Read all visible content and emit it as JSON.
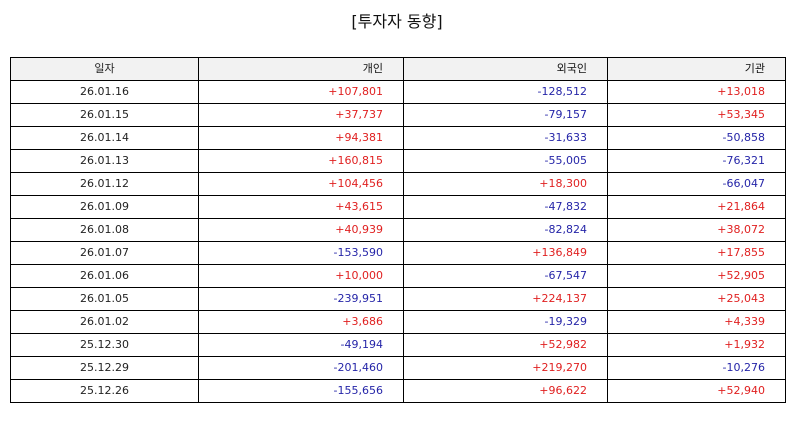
{
  "chart_data": {
    "type": "table",
    "title": "[투자자 동향]",
    "columns": [
      "일자",
      "개인",
      "외국인",
      "기관"
    ],
    "rows": [
      [
        "26.01.16",
        "+107,801",
        "-128,512",
        "+13,018"
      ],
      [
        "26.01.15",
        "+37,737",
        "-79,157",
        "+53,345"
      ],
      [
        "26.01.14",
        "+94,381",
        "-31,633",
        "-50,858"
      ],
      [
        "26.01.13",
        "+160,815",
        "-55,005",
        "-76,321"
      ],
      [
        "26.01.12",
        "+104,456",
        "+18,300",
        "-66,047"
      ],
      [
        "26.01.09",
        "+43,615",
        "-47,832",
        "+21,864"
      ],
      [
        "26.01.08",
        "+40,939",
        "-82,824",
        "+38,072"
      ],
      [
        "26.01.07",
        "-153,590",
        "+136,849",
        "+17,855"
      ],
      [
        "26.01.06",
        "+10,000",
        "-67,547",
        "+52,905"
      ],
      [
        "26.01.05",
        "-239,951",
        "+224,137",
        "+25,043"
      ],
      [
        "26.01.02",
        "+3,686",
        "-19,329",
        "+4,339"
      ],
      [
        "25.12.30",
        "-49,194",
        "+52,982",
        "+1,932"
      ],
      [
        "25.12.29",
        "-201,460",
        "+219,270",
        "-10,276"
      ],
      [
        "25.12.26",
        "-155,656",
        "+96,622",
        "+52,940"
      ]
    ]
  },
  "colors": {
    "positive": "#e02020",
    "negative": "#2525a8",
    "header_bg": "#f2f2f2",
    "border": "#000000"
  }
}
